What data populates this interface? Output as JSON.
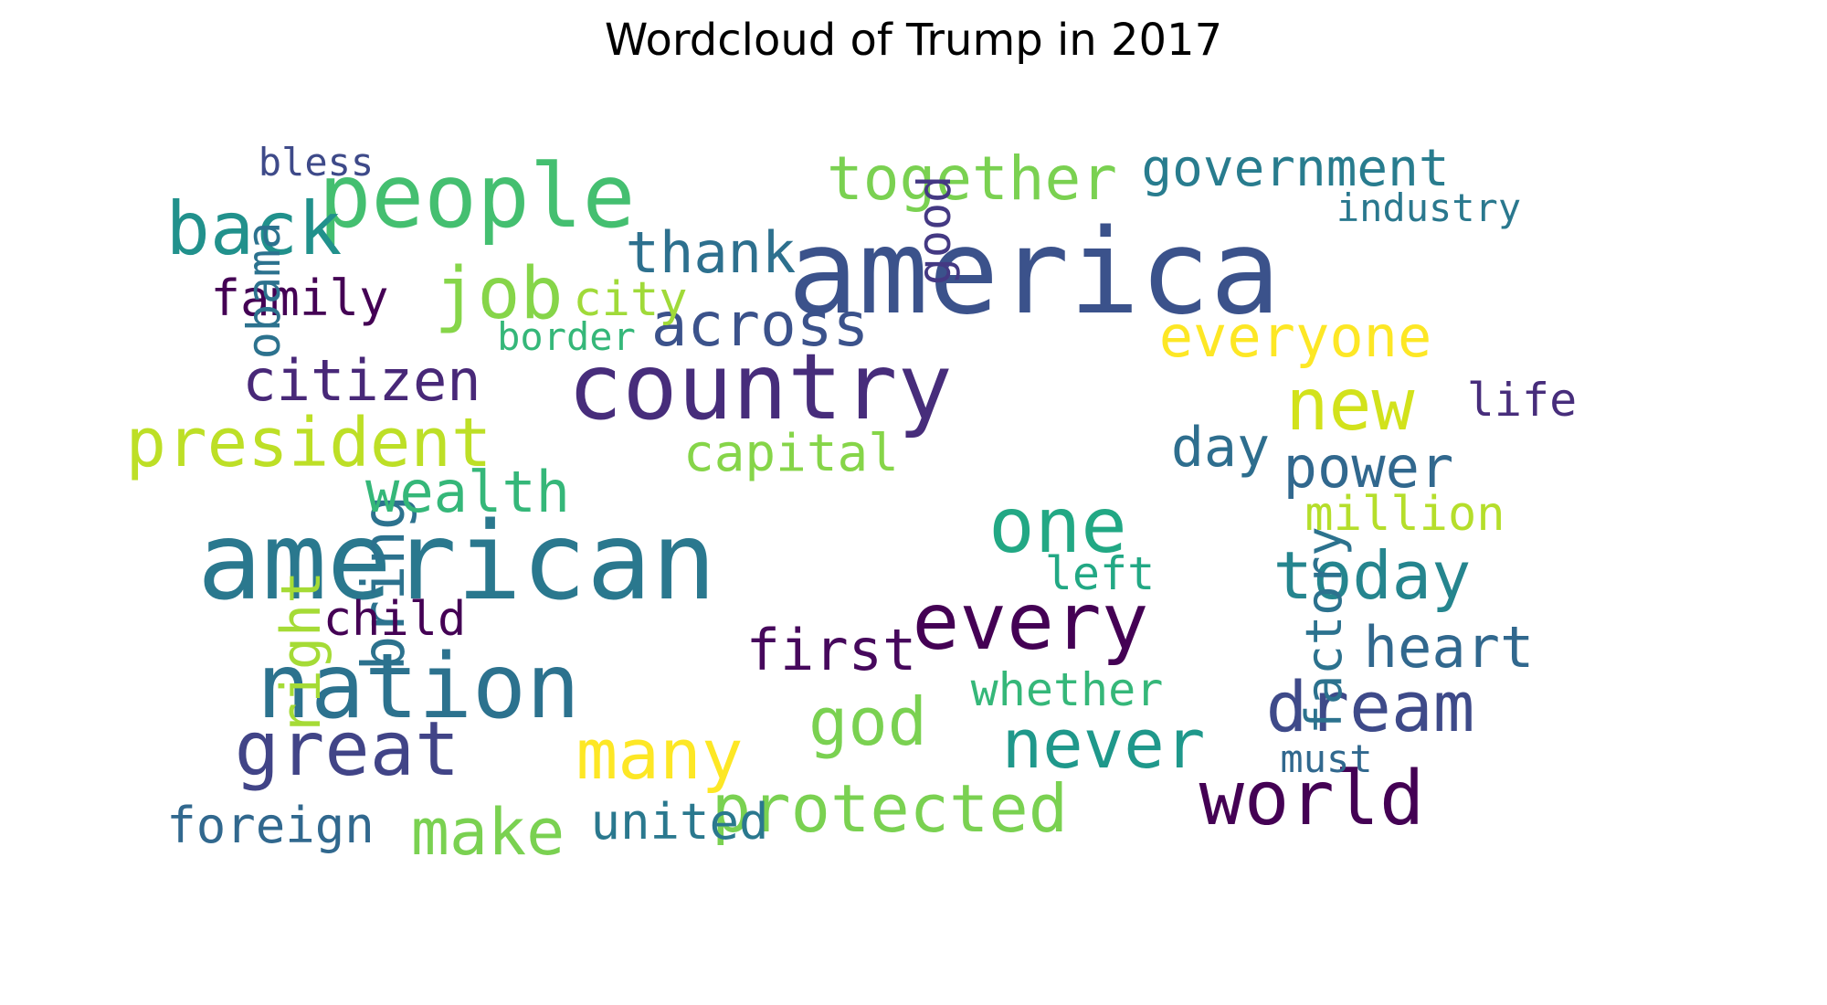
{
  "title": "Wordcloud of Trump in 2017",
  "words": [
    {
      "text": "america",
      "color": "#3b528b"
    },
    {
      "text": "american",
      "color": "#2a788e"
    },
    {
      "text": "country",
      "color": "#472d7b"
    },
    {
      "text": "nation",
      "color": "#2c728e"
    },
    {
      "text": "people",
      "color": "#44bf70"
    },
    {
      "text": "every",
      "color": "#440154"
    },
    {
      "text": "great",
      "color": "#414487"
    },
    {
      "text": "one",
      "color": "#22a884"
    },
    {
      "text": "world",
      "color": "#440154"
    },
    {
      "text": "protected",
      "color": "#7ad151"
    },
    {
      "text": "back",
      "color": "#21918c"
    },
    {
      "text": "president",
      "color": "#bddf26"
    },
    {
      "text": "never",
      "color": "#1f988b"
    },
    {
      "text": "dream",
      "color": "#3e4a89"
    },
    {
      "text": "many",
      "color": "#fde725"
    },
    {
      "text": "new",
      "color": "#d2e21b"
    },
    {
      "text": "today",
      "color": "#25858e"
    },
    {
      "text": "job",
      "color": "#86d549"
    },
    {
      "text": "across",
      "color": "#3b528b"
    },
    {
      "text": "everyone",
      "color": "#fde725"
    },
    {
      "text": "together",
      "color": "#7ad151"
    },
    {
      "text": "god",
      "color": "#7ad151"
    },
    {
      "text": "make",
      "color": "#7ad151"
    },
    {
      "text": "first",
      "color": "#46085c"
    },
    {
      "text": "government",
      "color": "#287c8e"
    },
    {
      "text": "heart",
      "color": "#31688e"
    },
    {
      "text": "citizen",
      "color": "#482878"
    },
    {
      "text": "thank",
      "color": "#2d708e"
    },
    {
      "text": "right",
      "color": "#a5db36"
    },
    {
      "text": "bring",
      "color": "#2c728e"
    },
    {
      "text": "wealth",
      "color": "#35b779"
    },
    {
      "text": "power",
      "color": "#31688e"
    },
    {
      "text": "day",
      "color": "#2e6e8e"
    },
    {
      "text": "capital",
      "color": "#86d549"
    },
    {
      "text": "united",
      "color": "#2a788e"
    },
    {
      "text": "foreign",
      "color": "#31688e"
    },
    {
      "text": "factory",
      "color": "#2c728e"
    },
    {
      "text": "family",
      "color": "#440154"
    },
    {
      "text": "obama",
      "color": "#2c728e"
    },
    {
      "text": "good",
      "color": "#443983"
    },
    {
      "text": "city",
      "color": "#a0da39"
    },
    {
      "text": "whether",
      "color": "#35b779"
    },
    {
      "text": "million",
      "color": "#b5de2b"
    },
    {
      "text": "left",
      "color": "#22a884"
    },
    {
      "text": "life",
      "color": "#472d7b"
    },
    {
      "text": "child",
      "color": "#440154"
    },
    {
      "text": "must",
      "color": "#31688e"
    },
    {
      "text": "bless",
      "color": "#3e4a89"
    },
    {
      "text": "border",
      "color": "#35b779"
    },
    {
      "text": "industry",
      "color": "#2a788e"
    }
  ]
}
